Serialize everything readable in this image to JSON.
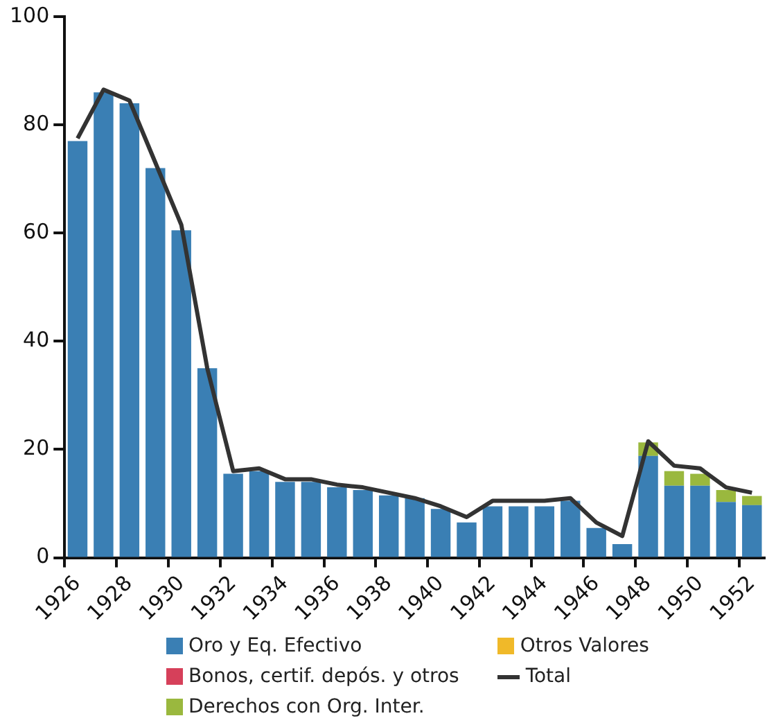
{
  "chart_data": {
    "type": "bar",
    "stacked": true,
    "categories": [
      "1926",
      null,
      "1928",
      null,
      "1930",
      null,
      "1932",
      null,
      "1934",
      null,
      "1936",
      null,
      "1938",
      null,
      "1940",
      null,
      "1942",
      null,
      "1944",
      null,
      "1946",
      null,
      "1948",
      null,
      "1950",
      null,
      "1952"
    ],
    "series": [
      {
        "name": "Oro y Eq. Efectivo",
        "color": "#3a7fb4",
        "values": [
          77,
          86,
          84,
          72,
          60.5,
          35,
          15.5,
          16,
          14,
          14,
          13,
          12.5,
          11.5,
          11,
          9,
          6.5,
          9.5,
          9.5,
          9.5,
          10.5,
          5.5,
          2.5,
          18.8,
          13.3,
          13.3,
          10.3,
          9.7
        ]
      },
      {
        "name": "Bonos, certif. depós. y otros",
        "color": "#d6405a",
        "values": [
          0,
          0,
          0,
          0,
          0,
          0,
          0,
          0,
          0,
          0,
          0,
          0,
          0,
          0,
          0,
          0,
          0,
          0,
          0,
          0,
          0,
          0,
          0,
          0,
          0,
          0,
          0
        ]
      },
      {
        "name": "Derechos con Org. Inter.",
        "color": "#9ab83e",
        "values": [
          0,
          0,
          0,
          0,
          0,
          0,
          0,
          0,
          0,
          0,
          0,
          0,
          0,
          0,
          0,
          0,
          0,
          0,
          0,
          0,
          0,
          0,
          2.5,
          2.7,
          2.2,
          2.2,
          1.7
        ]
      },
      {
        "name": "Otros Valores",
        "color": "#f0b929",
        "values": [
          0,
          0,
          0,
          0,
          0,
          0,
          0,
          0,
          0,
          0,
          0,
          0,
          0,
          0,
          0,
          0,
          0,
          0,
          0,
          0,
          0,
          0,
          0,
          0,
          0,
          0,
          0
        ]
      },
      {
        "name": "Total",
        "type": "line",
        "color": "#333333",
        "values": [
          77.5,
          86.5,
          84.5,
          73,
          61.5,
          35,
          16,
          16.5,
          14.5,
          14.5,
          13.5,
          13,
          12,
          11,
          9.5,
          7.5,
          10.5,
          10.5,
          10.5,
          11,
          6.5,
          4,
          21.5,
          17,
          16.5,
          13,
          12
        ]
      }
    ],
    "ylim": [
      0,
      100
    ],
    "yticks": [
      0,
      20,
      40,
      60,
      80,
      100
    ],
    "grid": false,
    "legend": "bottom",
    "marker": "none"
  }
}
